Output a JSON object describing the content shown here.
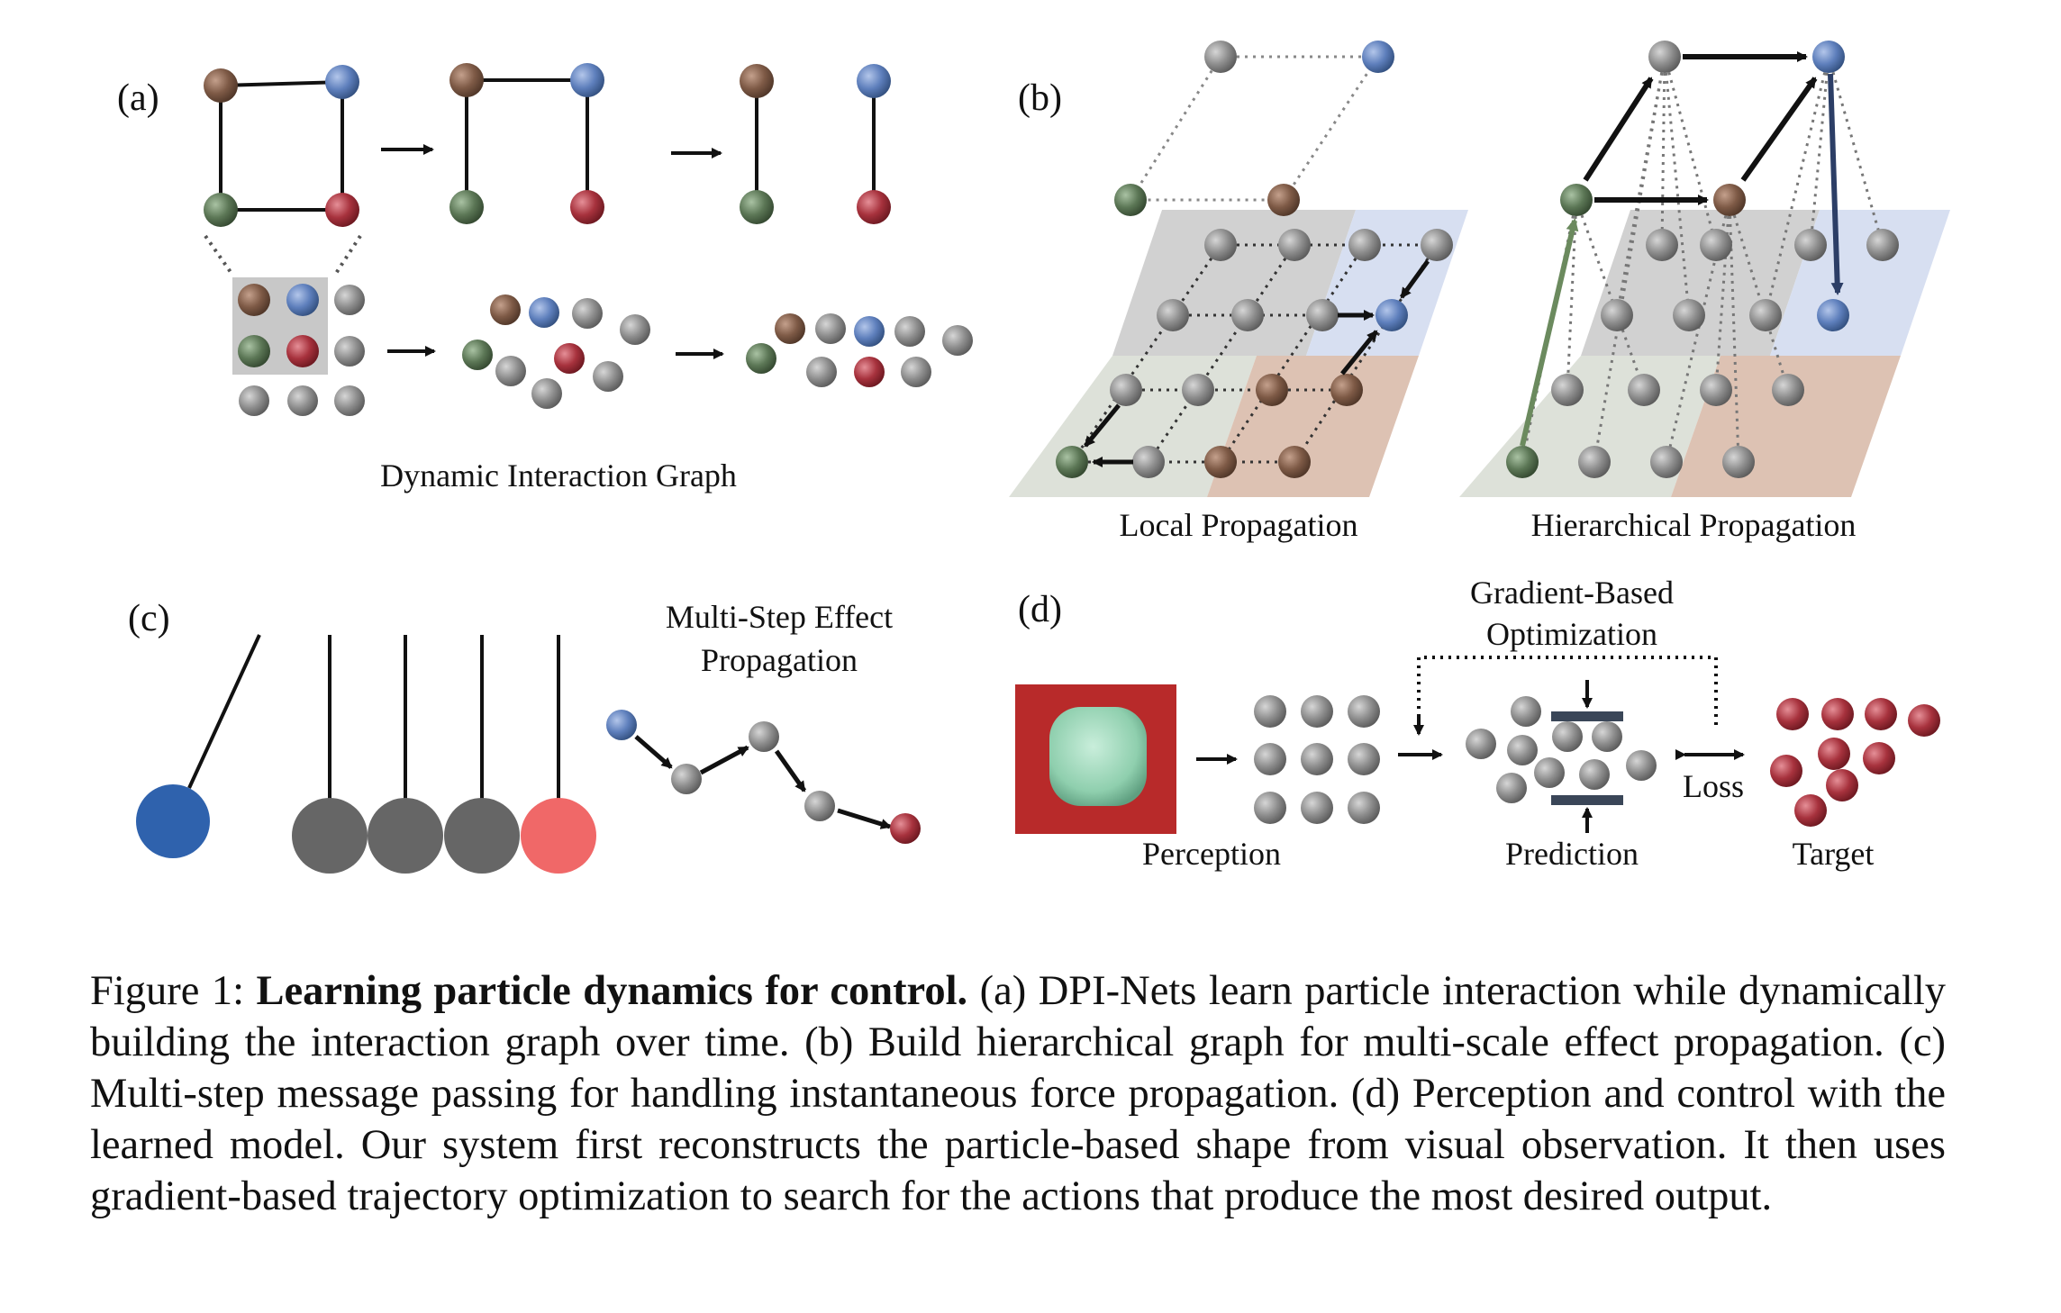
{
  "figure": {
    "panel_a": {
      "label": "(a)",
      "title": "Dynamic Interaction Graph"
    },
    "panel_b": {
      "label": "(b)",
      "local_title": "Local Propagation",
      "hier_title": "Hierarchical Propagation"
    },
    "panel_c": {
      "label": "(c)",
      "title_line1": "Multi-Step Effect",
      "title_line2": "Propagation"
    },
    "panel_d": {
      "label": "(d)",
      "gradient_line1": "Gradient-Based",
      "gradient_line2": "Optimization",
      "loss": "Loss",
      "perception": "Perception",
      "prediction": "Prediction",
      "target": "Target"
    }
  },
  "caption": {
    "prefix": "Figure 1:",
    "bold": "Learning particle dynamics for control.",
    "text": "(a) DPI-Nets learn particle interaction while dynamically building the interaction graph over time. (b) Build hierarchical graph for multi-scale effect propagation. (c) Multi-step message passing for handling instantaneous force propagation. (d) Perception and control with the learned model. Our system first reconstructs the particle-based shape from visual observation. It then uses gradient-based trajectory optimization to search for the actions that produce the most desired output."
  },
  "colors": {
    "brown": "#7a5a48",
    "blue": "#5f7fb8",
    "green": "#5f7a58",
    "red": "#a8343e",
    "gray": "#8a8a8a",
    "pendulum_blue": "#2f62ad",
    "pendulum_gray": "#666666",
    "pendulum_red": "#f06868",
    "bar": "#3a4658",
    "photo_bg": "#b82a2a",
    "foam": "#9fd6b8"
  }
}
